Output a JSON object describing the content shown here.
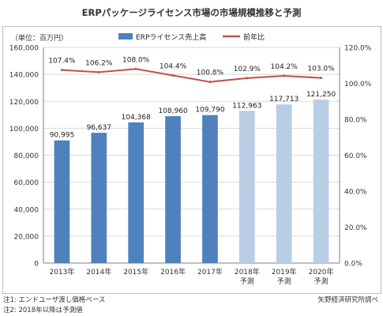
{
  "title": "ERPパッケージライセンス市場の市場規模推移と予測",
  "notes": {
    "note1": "注1: エンドユーザ渡し価格ベース",
    "note2": "注2: 2018年以降は予測値",
    "source": "矢野経済研究所調べ"
  },
  "chart_data": {
    "type": "bar",
    "title": "ERPパッケージライセンス市場の市場規模推移と予測",
    "unit_label": "（単位：百万円）",
    "categories": [
      "2013年",
      "2014年",
      "2015年",
      "2016年",
      "2017年",
      "2018年\n予測",
      "2019年\n予測",
      "2020年\n予測"
    ],
    "series": [
      {
        "name": "ERPライセンス売上高",
        "type": "bar",
        "axis": "left",
        "values": [
          90995,
          96637,
          104368,
          108960,
          109790,
          112963,
          117713,
          121250
        ],
        "labels": [
          "90,995",
          "96,637",
          "104,368",
          "108,960",
          "109,790",
          "112,963",
          "117,713",
          "121,250"
        ],
        "forecast_from_index": 5
      },
      {
        "name": "前年比",
        "type": "line",
        "axis": "right",
        "values": [
          107.4,
          106.2,
          108.0,
          104.4,
          100.8,
          102.9,
          104.2,
          103.0
        ],
        "labels": [
          "107.4%",
          "106.2%",
          "108.0%",
          "104.4%",
          "100.8%",
          "102.9%",
          "104.2%",
          "103.0%"
        ]
      }
    ],
    "ylim": [
      0,
      160000
    ],
    "yticks": [
      "0",
      "20,000",
      "40,000",
      "60,000",
      "80,000",
      "100,000",
      "120,000",
      "140,000",
      "160,000"
    ],
    "y2lim": [
      0,
      120
    ],
    "y2ticks": [
      "0.0%",
      "20.0%",
      "40.0%",
      "60.0%",
      "80.0%",
      "100.0%",
      "120.0%"
    ],
    "grid": true,
    "legend_position": "top",
    "colors": {
      "bar_actual": "#4f81bd",
      "bar_forecast": "#b9cde5",
      "line": "#c0504d",
      "grid": "#d9d9d9",
      "axis": "#7f7f7f"
    }
  }
}
